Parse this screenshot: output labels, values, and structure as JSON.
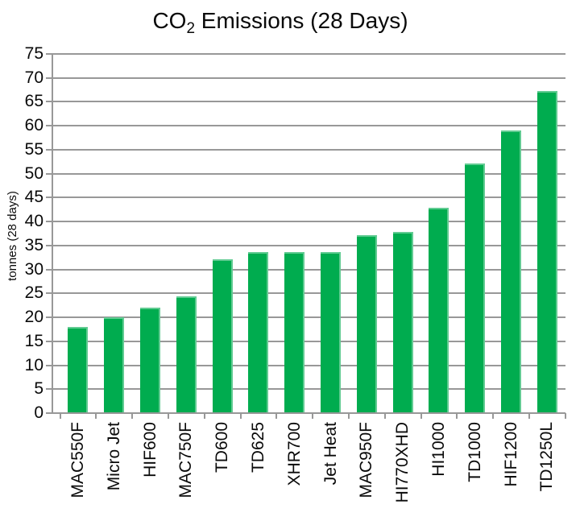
{
  "title": {
    "prefix": "CO",
    "subscript": "2",
    "suffix": " Emissions (28 Days)",
    "full": "CO₂ Emissions (28 Days)"
  },
  "chart_data": {
    "type": "bar",
    "title": "CO₂ Emissions (28 Days)",
    "xlabel": "",
    "ylabel": "tonnes (28 days)",
    "ylim": [
      0,
      75
    ],
    "ytick_step": 5,
    "grid": "horizontal-gridlines-on",
    "legend_position": "none",
    "bar_color": "#00AC4F",
    "grid_color": "#989898",
    "axis_color": "#989898",
    "text_color": "#0a0a0a",
    "categories": [
      "MAC550F",
      "Micro Jet",
      "HIF600",
      "MAC750F",
      "TD600",
      "TD625",
      "XHR700",
      "Jet Heat",
      "MAC950F",
      "HI770XHD",
      "HI1000",
      "TD1000",
      "HIF1200",
      "TD1250L"
    ],
    "values": [
      18,
      20,
      22,
      24.4,
      32.2,
      33.7,
      33.7,
      33.7,
      37.1,
      37.8,
      42.8,
      52.2,
      59,
      67.3
    ]
  }
}
